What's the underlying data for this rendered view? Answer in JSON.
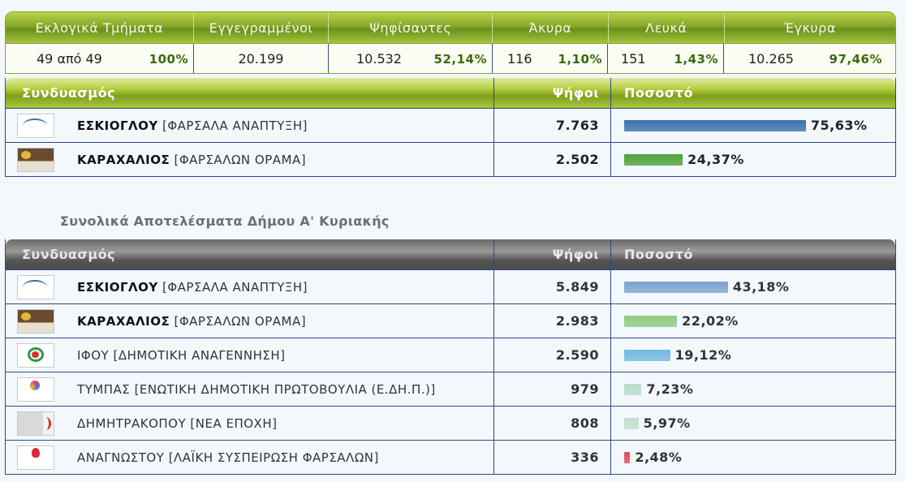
{
  "summary": {
    "headers": [
      "Εκλογικά Τμήματα",
      "Εγγεγραμμένοι",
      "Ψηφίσαντες",
      "Άκυρα",
      "Λευκά",
      "Έγκυρα"
    ],
    "sections": {
      "value": "49 από 49",
      "pct": "100%"
    },
    "registered": {
      "value": "20.199"
    },
    "voted": {
      "value": "10.532",
      "pct": "52,14%"
    },
    "invalid": {
      "value": "116",
      "pct": "1,10%"
    },
    "blank": {
      "value": "151",
      "pct": "1,43%"
    },
    "valid": {
      "value": "10.265",
      "pct": "97,46%"
    }
  },
  "table1": {
    "header": {
      "party": "Συνδυασμός",
      "votes": "Ψήφοι",
      "pct": "Ποσοστό"
    },
    "rows": [
      {
        "leader": "ΕΣΚΙΟΓΛΟΥ",
        "party": "[ΦΑΡΣΑΛΑ ΑΝΑΠΤΥΞΗ]",
        "votes": "7.763",
        "pct": "75,63%",
        "share": 75.63,
        "color": "#3d6fae",
        "logo": "farsala-anaptyxi-logo"
      },
      {
        "leader": "ΚΑΡΑΧΑΛΙΟΣ",
        "party": "[ΦΑΡΣΑΛΩΝ ΟΡΑΜΑ]",
        "votes": "2.502",
        "pct": "24,37%",
        "share": 24.37,
        "color": "#4ea23c",
        "logo": "farsalon-orama-logo"
      }
    ]
  },
  "section_title": "Συνολικά Αποτελέσματα Δήμου Α' Κυριακής",
  "table2": {
    "header": {
      "party": "Συνδυασμός",
      "votes": "Ψήφοι",
      "pct": "Ποσοστό"
    },
    "rows": [
      {
        "leader": "ΕΣΚΙΟΓΛΟΥ",
        "party": "[ΦΑΡΣΑΛΑ ΑΝΑΠΤΥΞΗ]",
        "bold": true,
        "votes": "5.849",
        "pct": "43,18%",
        "share": 43.18,
        "color": "#7fa3cf",
        "logo": "farsala-anaptyxi-logo"
      },
      {
        "leader": "ΚΑΡΑΧΑΛΙΟΣ",
        "party": "[ΦΑΡΣΑΛΩΝ ΟΡΑΜΑ]",
        "bold": true,
        "votes": "2.983",
        "pct": "22,02%",
        "share": 22.02,
        "color": "#8fcc80",
        "logo": "farsalon-orama-logo"
      },
      {
        "leader": "ΙΦΟΥ",
        "party": "[ΔΗΜΟΤΙΚΗ ΑΝΑΓΕΝΝΗΣΗ]",
        "bold": false,
        "votes": "2.590",
        "pct": "19,12%",
        "share": 19.12,
        "color": "#72b8e0",
        "logo": "dimotiki-anagennisi-logo"
      },
      {
        "leader": "ΤΥΜΠΑΣ",
        "party": "[ΕΝΩΤΙΚΗ ΔΗΜΟΤΙΚΗ ΠΡΩΤΟΒΟΥΛΙΑ (Ε.ΔΗ.Π.)]",
        "bold": false,
        "votes": "979",
        "pct": "7,23%",
        "share": 7.23,
        "color": "#b9dcc9",
        "logo": "edip-logo"
      },
      {
        "leader": "ΔΗΜΗΤΡΑΚΟΠΟΥ",
        "party": "[ΝΕΑ ΕΠΟΧΗ]",
        "bold": false,
        "votes": "808",
        "pct": "5,97%",
        "share": 5.97,
        "color": "#c5ddcf",
        "logo": "nea-epochi-logo"
      },
      {
        "leader": "ΑΝΑΓΝΩΣΤΟΥ",
        "party": "[ΛΑΪΚΗ ΣΥΣΠΕΙΡΩΣΗ ΦΑΡΣΑΛΩΝ]",
        "bold": false,
        "votes": "336",
        "pct": "2,48%",
        "share": 2.48,
        "color": "#d9505a",
        "logo": "laiki-syspeirosi-logo"
      }
    ]
  }
}
